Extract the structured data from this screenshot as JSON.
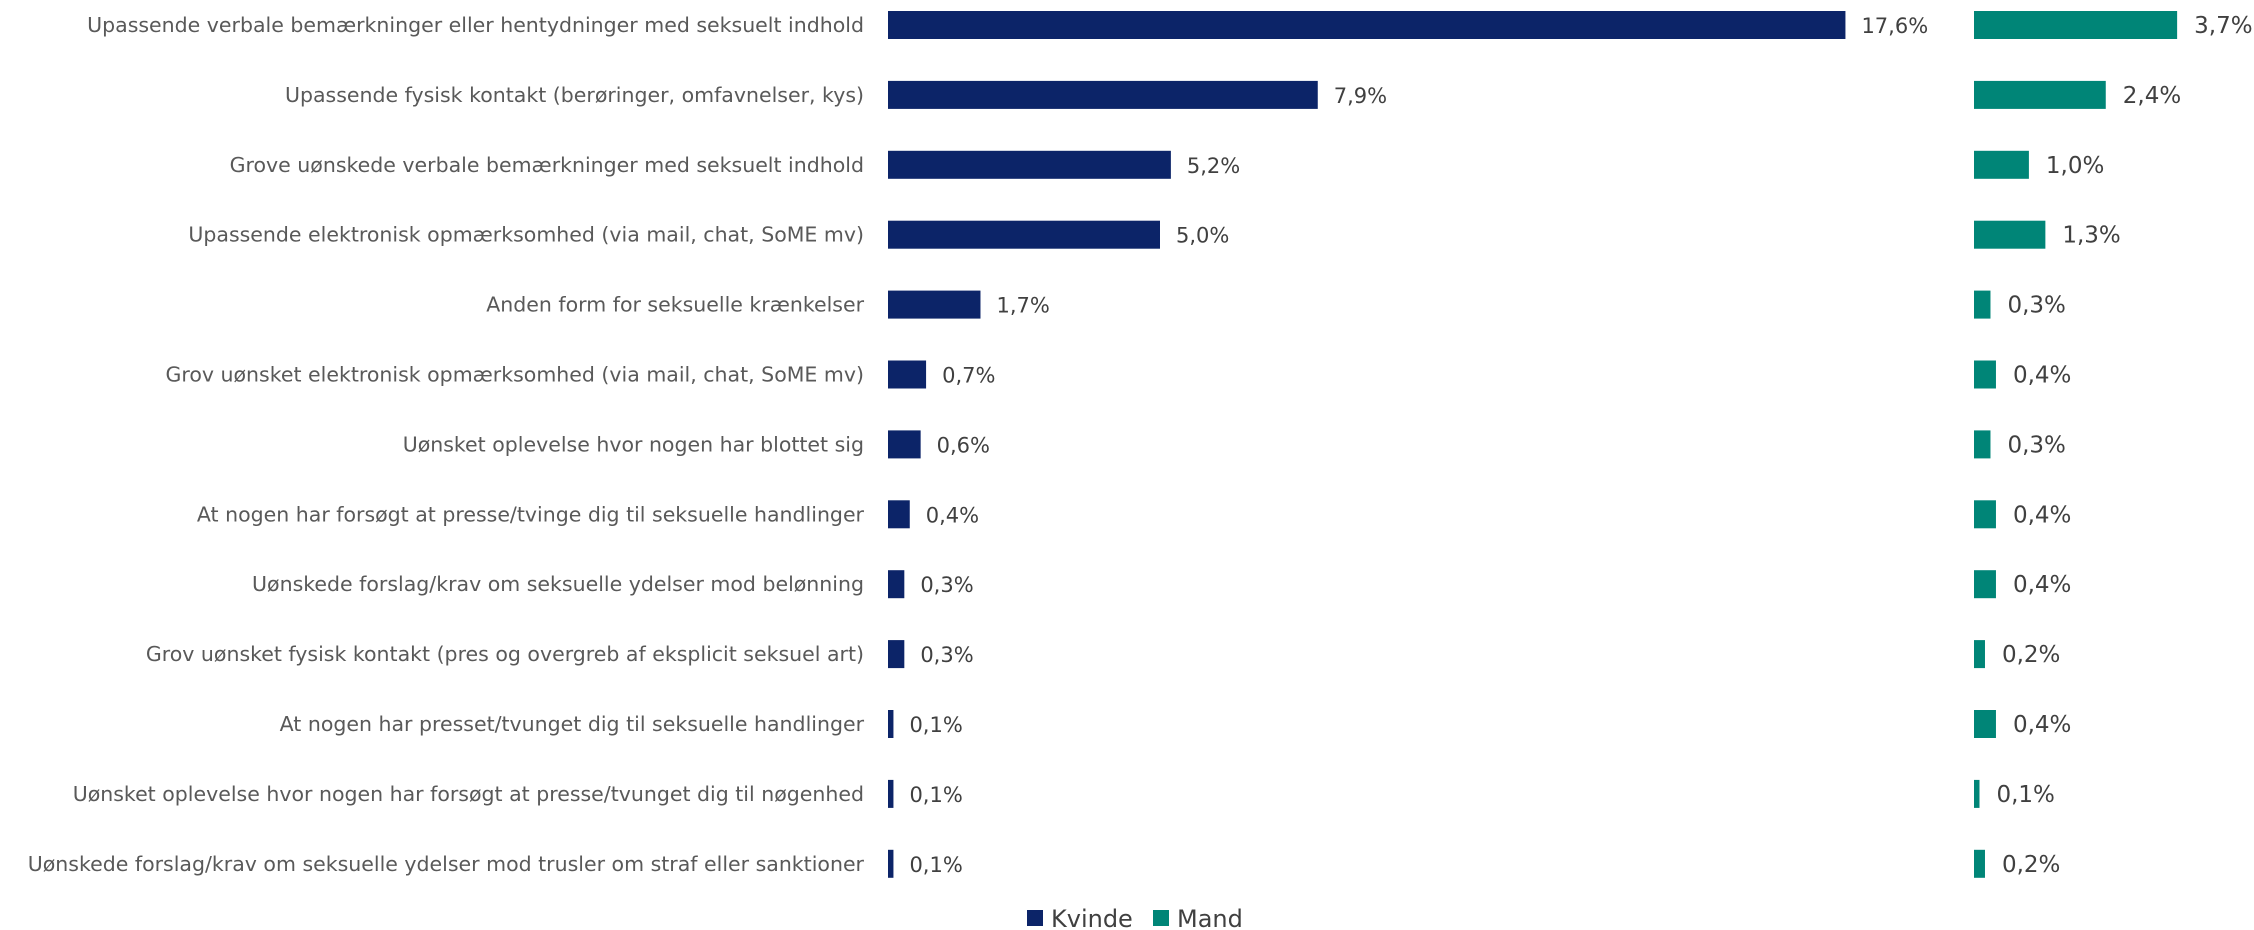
{
  "chart_data": {
    "type": "bar",
    "orientation": "horizontal",
    "categories": [
      "Upassende verbale bemærkninger eller hentydninger med seksuelt indhold",
      "Upassende fysisk kontakt (berøringer, omfavnelser, kys)",
      "Grove uønskede verbale bemærkninger med seksuelt indhold",
      "Upassende elektronisk opmærksomhed (via mail, chat, SoME mv)",
      "Anden form for seksuelle krænkelser",
      "Grov uønsket elektronisk opmærksomhed (via mail, chat, SoME mv)",
      "Uønsket oplevelse hvor nogen har blottet sig",
      "At nogen har forsøgt at presse/tvinge dig til seksuelle handlinger",
      "Uønskede forslag/krav om seksuelle ydelser mod belønning",
      "Grov uønsket fysisk kontakt (pres og overgreb af eksplicit seksuel art)",
      "At nogen har presset/tvunget dig til seksuelle handlinger",
      "Uønsket oplevelse hvor nogen har forsøgt at presse/tvunget dig til nøgenhed",
      "Uønskede forslag/krav om seksuelle ydelser mod trusler om straf eller sanktioner"
    ],
    "series": [
      {
        "name": "Kvinde",
        "color": "#0c2468",
        "values": [
          17.6,
          7.9,
          5.2,
          5.0,
          1.7,
          0.7,
          0.6,
          0.4,
          0.3,
          0.3,
          0.1,
          0.1,
          0.1
        ],
        "labels": [
          "17,6%",
          "7,9%",
          "5,2%",
          "5,0%",
          "1,7%",
          "0,7%",
          "0,6%",
          "0,4%",
          "0,3%",
          "0,3%",
          "0,1%",
          "0,1%",
          "0,1%"
        ]
      },
      {
        "name": "Mand",
        "color": "#008577",
        "values": [
          3.7,
          2.4,
          1.0,
          1.3,
          0.3,
          0.4,
          0.3,
          0.4,
          0.4,
          0.2,
          0.4,
          0.1,
          0.2
        ],
        "labels": [
          "3,7%",
          "2,4%",
          "1,0%",
          "1,3%",
          "0,3%",
          "0,4%",
          "0,3%",
          "0,4%",
          "0,4%",
          "0,2%",
          "0,4%",
          "0,1%",
          "0,2%"
        ]
      }
    ],
    "legend": {
      "position": "bottom",
      "items": [
        "Kvinde",
        "Mand"
      ]
    },
    "title": "",
    "xlabel": "",
    "ylabel": "",
    "grid": false
  }
}
